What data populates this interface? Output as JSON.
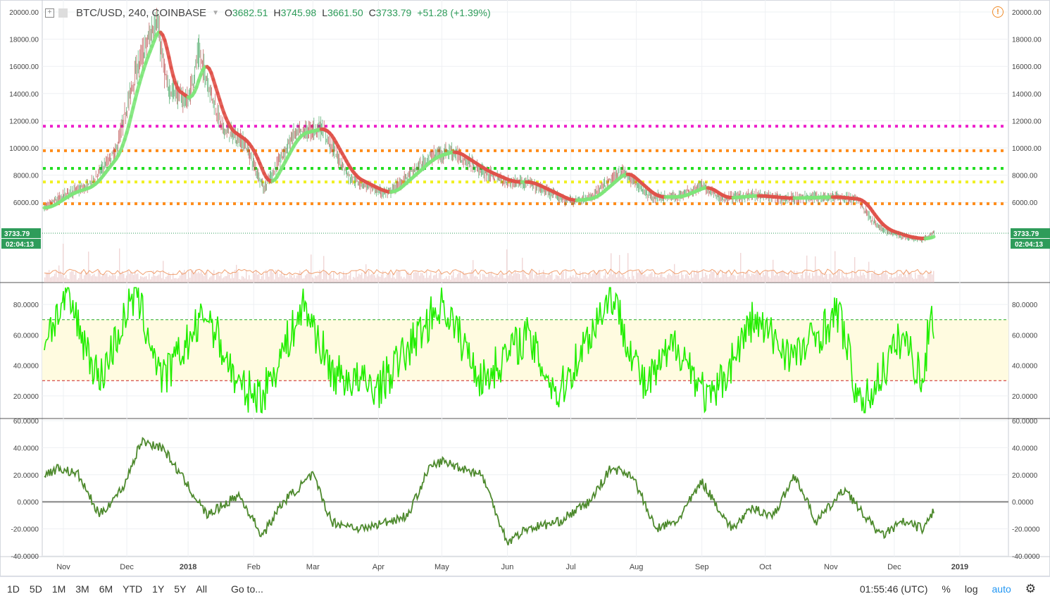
{
  "legend": {
    "symbol": "BTC/USD, 240, COINBASE",
    "o_label": "O",
    "o_value": "3682.51",
    "h_label": "H",
    "h_value": "3745.98",
    "l_label": "L",
    "l_value": "3661.50",
    "c_label": "C",
    "c_value": "3733.79",
    "change": "+51.28 (+1.39%)"
  },
  "price_badge": "3733.79",
  "time_badge": "02:04:13",
  "x_axis_labels": [
    "Nov",
    "Dec",
    "2018",
    "Feb",
    "Mar",
    "Apr",
    "May",
    "Jun",
    "Jul",
    "Aug",
    "Sep",
    "Oct",
    "Nov",
    "Dec",
    "2019"
  ],
  "toolbar": {
    "timeframes": [
      "1D",
      "5D",
      "1M",
      "3M",
      "6M",
      "YTD",
      "1Y",
      "5Y",
      "All"
    ],
    "goto": "Go to...",
    "clock": "01:55:46 (UTC)",
    "percent": "%",
    "log": "log",
    "auto": "auto"
  },
  "colors": {
    "up_ma": "#7ee67a",
    "down_ma": "#e0524a",
    "rsi": "#22ee00",
    "osc": "#4e8a2e",
    "magenta": "#ee22cc",
    "orange": "#ff8c1a",
    "green": "#22dd22",
    "yellow": "#f0f020"
  },
  "chart_data": [
    {
      "type": "line",
      "title": "BTC/USD, 240, COINBASE",
      "ylim": [
        0,
        20000
      ],
      "yticks": [
        "6000.00",
        "8000.00",
        "10000.00",
        "12000.00",
        "14000.00",
        "16000.00",
        "18000.00",
        "20000.00"
      ],
      "x": [
        "2017-10-25",
        "2017-11-05",
        "2017-11-15",
        "2017-11-28",
        "2017-12-07",
        "2017-12-17",
        "2017-12-22",
        "2018-01-01",
        "2018-01-06",
        "2018-01-17",
        "2018-01-28",
        "2018-02-06",
        "2018-02-20",
        "2018-03-05",
        "2018-03-18",
        "2018-04-01",
        "2018-04-06",
        "2018-04-25",
        "2018-05-05",
        "2018-05-20",
        "2018-06-01",
        "2018-06-10",
        "2018-06-29",
        "2018-07-10",
        "2018-07-25",
        "2018-08-08",
        "2018-08-20",
        "2018-09-01",
        "2018-09-10",
        "2018-09-25",
        "2018-10-10",
        "2018-11-01",
        "2018-11-14",
        "2018-11-20",
        "2018-11-25",
        "2018-12-07",
        "2018-12-15",
        "2018-12-20"
      ],
      "series": [
        {
          "values": [
            5600,
            6700,
            7200,
            9800,
            15500,
            19500,
            14500,
            13400,
            17000,
            11500,
            10300,
            7000,
            11000,
            11500,
            7900,
            6800,
            6700,
            9300,
            9800,
            8300,
            7500,
            7500,
            6100,
            6300,
            8300,
            6400,
            6400,
            7200,
            6300,
            6500,
            6300,
            6400,
            6200,
            4800,
            4000,
            3400,
            3300,
            3733.79
          ]
        }
      ],
      "levels": [
        {
          "name": "magenta",
          "value": 11600
        },
        {
          "name": "orange",
          "value": 9800
        },
        {
          "name": "green",
          "value": 8500
        },
        {
          "name": "yellow",
          "value": 7500
        },
        {
          "name": "orange",
          "value": 5900
        }
      ]
    },
    {
      "type": "line",
      "ylim": [
        7,
        93
      ],
      "yticks": [
        "20.0000",
        "40.0000",
        "60.0000",
        "80.0000"
      ],
      "bands": [
        30,
        70
      ],
      "x": [
        "2017-10-25",
        "2017-11-05",
        "2017-11-20",
        "2017-12-07",
        "2017-12-20",
        "2018-01-10",
        "2018-01-25",
        "2018-02-05",
        "2018-02-25",
        "2018-03-10",
        "2018-04-01",
        "2018-04-20",
        "2018-05-01",
        "2018-05-20",
        "2018-06-10",
        "2018-06-25",
        "2018-07-20",
        "2018-08-05",
        "2018-08-20",
        "2018-09-05",
        "2018-09-25",
        "2018-10-15",
        "2018-11-05",
        "2018-11-15",
        "2018-11-25",
        "2018-12-05",
        "2018-12-15",
        "2018-12-18",
        "2018-12-20"
      ],
      "series": [
        {
          "values": [
            58,
            85,
            30,
            88,
            30,
            75,
            25,
            20,
            80,
            35,
            25,
            60,
            82,
            30,
            60,
            20,
            88,
            25,
            55,
            15,
            70,
            45,
            75,
            10,
            35,
            60,
            28,
            78,
            65
          ]
        }
      ]
    },
    {
      "type": "line",
      "ylim": [
        -40,
        60
      ],
      "yticks": [
        "-40.0000",
        "-20.0000",
        "0.0000",
        "20.0000",
        "40.0000",
        "60.0000"
      ],
      "x": [
        "2017-10-25",
        "2017-11-01",
        "2017-11-10",
        "2017-11-20",
        "2017-12-01",
        "2017-12-10",
        "2017-12-20",
        "2018-01-10",
        "2018-01-25",
        "2018-02-05",
        "2018-02-15",
        "2018-03-01",
        "2018-03-10",
        "2018-03-25",
        "2018-04-15",
        "2018-04-25",
        "2018-05-01",
        "2018-05-20",
        "2018-06-01",
        "2018-06-10",
        "2018-06-25",
        "2018-07-10",
        "2018-07-20",
        "2018-07-30",
        "2018-08-10",
        "2018-08-20",
        "2018-09-01",
        "2018-09-15",
        "2018-09-25",
        "2018-10-05",
        "2018-10-15",
        "2018-10-25",
        "2018-11-08",
        "2018-11-14",
        "2018-11-25",
        "2018-12-05",
        "2018-12-15",
        "2018-12-20"
      ],
      "series": [
        {
          "values": [
            20,
            25,
            20,
            -10,
            10,
            45,
            40,
            -10,
            5,
            -25,
            0,
            20,
            -15,
            -20,
            -10,
            25,
            30,
            20,
            -30,
            -20,
            -15,
            0,
            25,
            20,
            -20,
            -15,
            15,
            -20,
            -5,
            -10,
            20,
            -15,
            10,
            -5,
            -25,
            -15,
            -20,
            -5
          ]
        }
      ]
    }
  ]
}
